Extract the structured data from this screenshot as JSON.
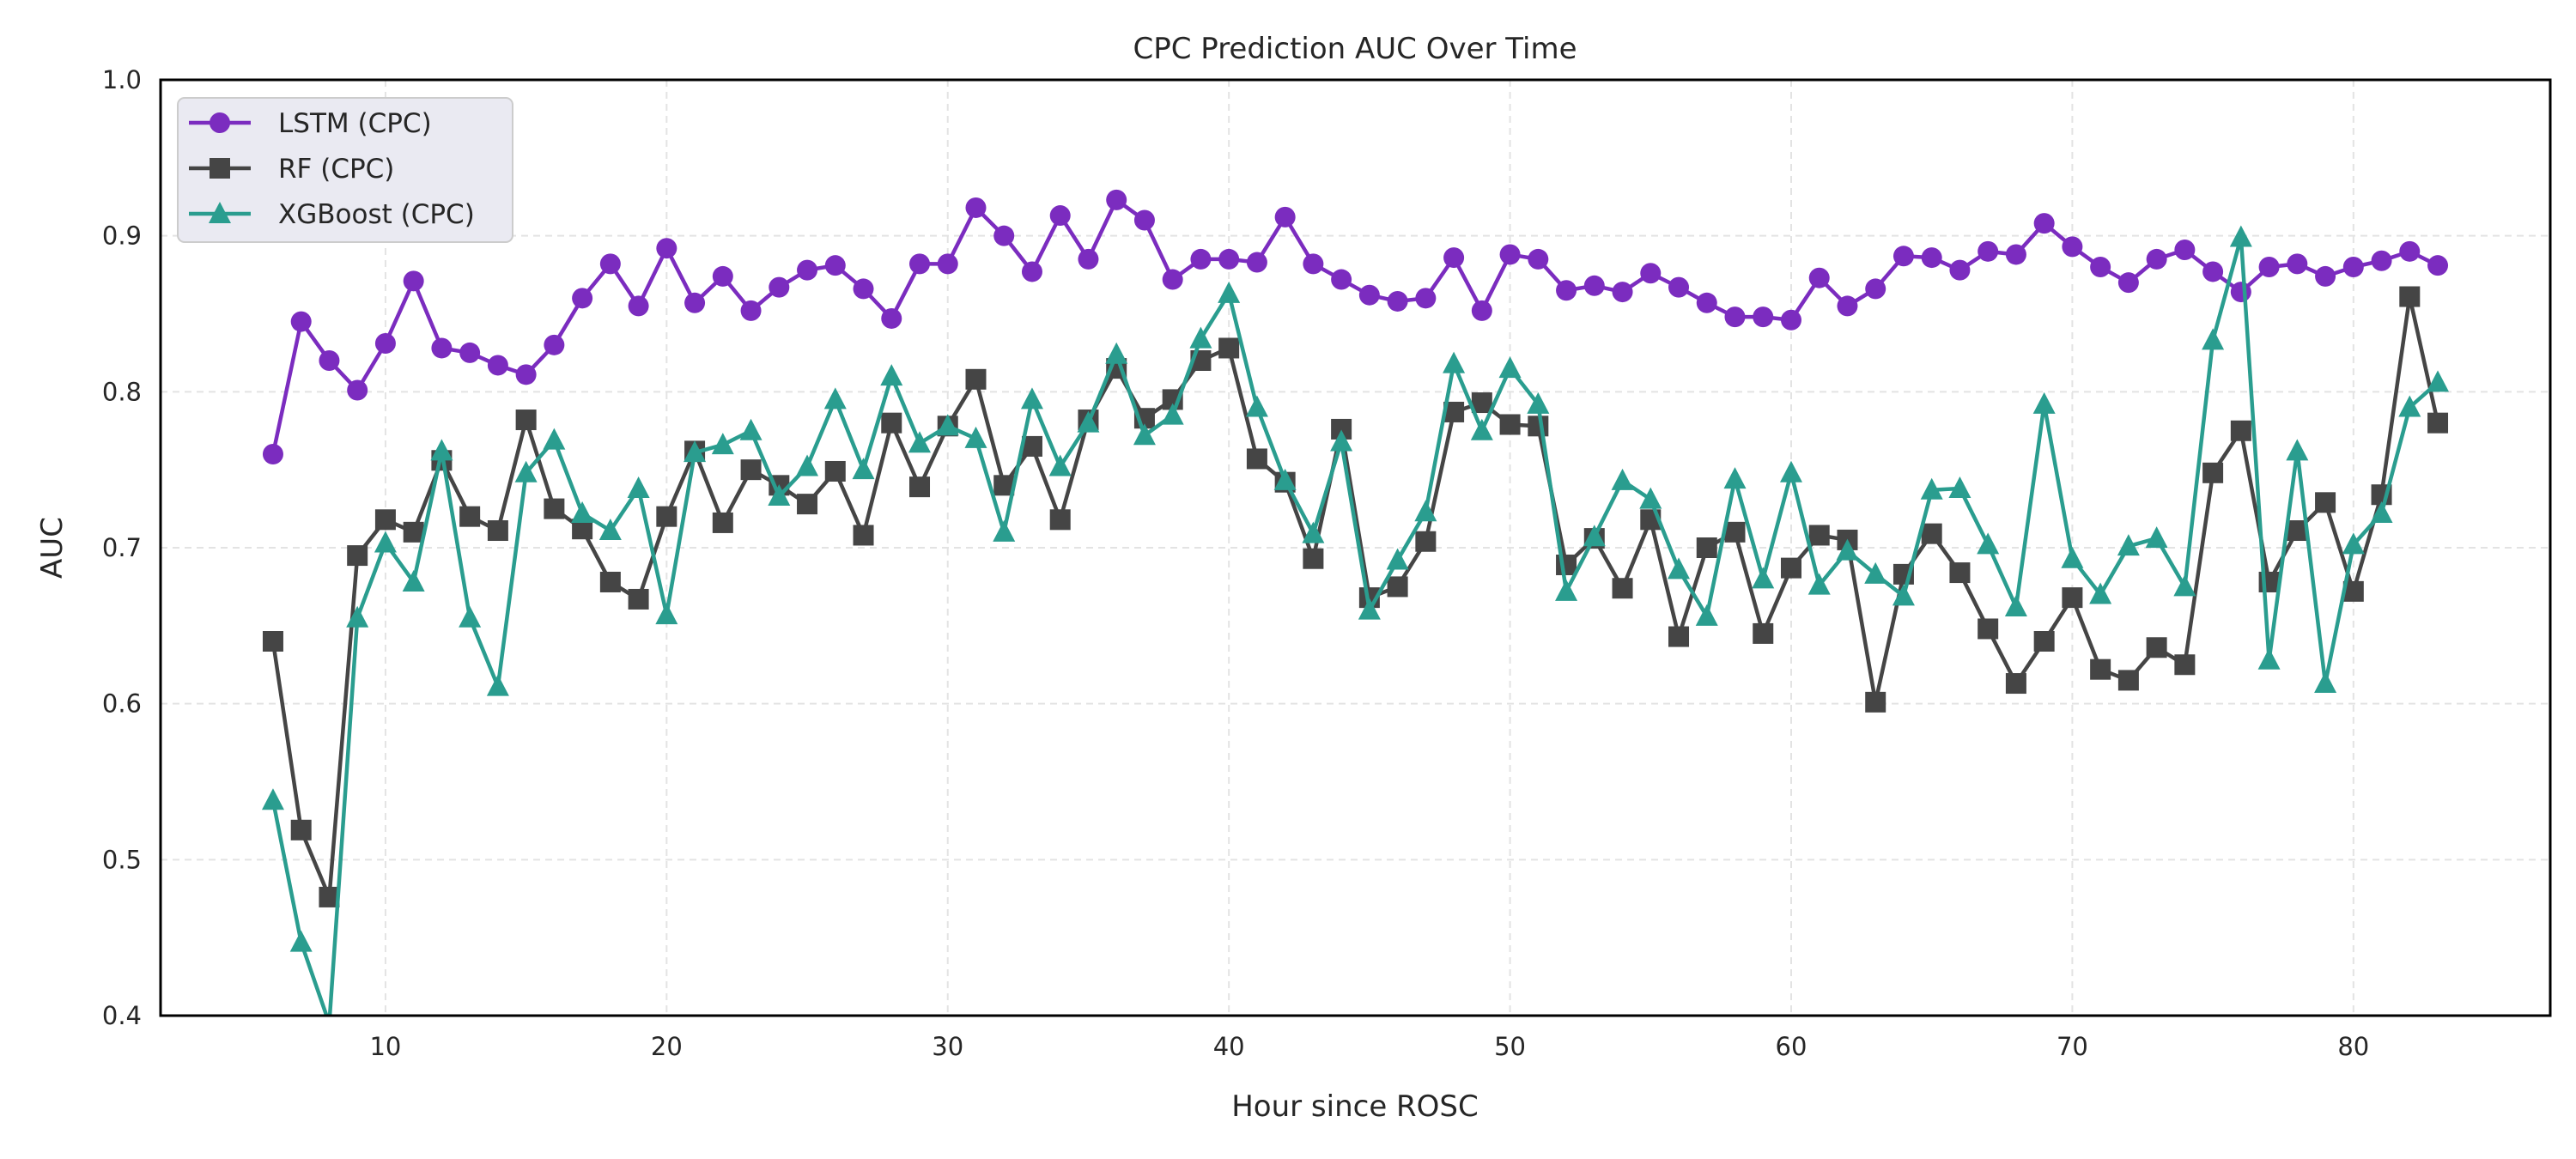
{
  "chart_data": {
    "type": "line",
    "title": "CPC Prediction AUC Over Time",
    "xlabel": "Hour since ROSC",
    "ylabel": "AUC",
    "xlim": [
      2,
      87
    ],
    "ylim": [
      0.4,
      1.0
    ],
    "xticks": [
      10,
      20,
      30,
      40,
      50,
      60,
      70,
      80
    ],
    "yticks": [
      0.4,
      0.5,
      0.6,
      0.7,
      0.8,
      0.9,
      1.0
    ],
    "grid": true,
    "legend_position": "top-left",
    "x": [
      6,
      7,
      8,
      9,
      10,
      11,
      12,
      13,
      14,
      15,
      16,
      17,
      18,
      19,
      20,
      21,
      22,
      23,
      24,
      25,
      26,
      27,
      28,
      29,
      30,
      31,
      32,
      33,
      34,
      35,
      36,
      37,
      38,
      39,
      40,
      41,
      42,
      43,
      44,
      45,
      46,
      47,
      48,
      49,
      50,
      51,
      52,
      53,
      54,
      55,
      56,
      57,
      58,
      59,
      60,
      61,
      62,
      63,
      64,
      65,
      66,
      67,
      68,
      69,
      70,
      71,
      72,
      73,
      74,
      75,
      76,
      77,
      78,
      79,
      80,
      81,
      82,
      83
    ],
    "series": [
      {
        "name": "LSTM (CPC)",
        "color": "#7b2cbf",
        "marker": "circle",
        "values": [
          0.76,
          0.845,
          0.82,
          0.801,
          0.831,
          0.871,
          0.828,
          0.825,
          0.817,
          0.811,
          0.83,
          0.86,
          0.882,
          0.855,
          0.892,
          0.857,
          0.874,
          0.852,
          0.867,
          0.878,
          0.881,
          0.866,
          0.847,
          0.882,
          0.882,
          0.918,
          0.9,
          0.877,
          0.913,
          0.885,
          0.923,
          0.91,
          0.872,
          0.885,
          0.885,
          0.883,
          0.912,
          0.882,
          0.872,
          0.862,
          0.858,
          0.86,
          0.886,
          0.852,
          0.888,
          0.885,
          0.865,
          0.868,
          0.864,
          0.876,
          0.867,
          0.857,
          0.848,
          0.848,
          0.846,
          0.873,
          0.855,
          0.866,
          0.887,
          0.886,
          0.878,
          0.89,
          0.888,
          0.908,
          0.893,
          0.88,
          0.87,
          0.885,
          0.891,
          0.877,
          0.864,
          0.88,
          0.882,
          0.874,
          0.88,
          0.884,
          0.89,
          0.881
        ]
      },
      {
        "name": "RF (CPC)",
        "color": "#454545",
        "marker": "square",
        "values": [
          0.64,
          0.519,
          0.476,
          0.695,
          0.718,
          0.71,
          0.756,
          0.72,
          0.711,
          0.782,
          0.725,
          0.712,
          0.678,
          0.667,
          0.72,
          0.762,
          0.716,
          0.75,
          0.74,
          0.728,
          0.749,
          0.708,
          0.78,
          0.739,
          0.778,
          0.808,
          0.74,
          0.765,
          0.718,
          0.782,
          0.815,
          0.783,
          0.795,
          0.82,
          0.828,
          0.757,
          0.742,
          0.693,
          0.776,
          0.668,
          0.675,
          0.704,
          0.787,
          0.793,
          0.779,
          0.778,
          0.689,
          0.706,
          0.674,
          0.718,
          0.643,
          0.7,
          0.71,
          0.645,
          0.687,
          0.708,
          0.705,
          0.601,
          0.683,
          0.709,
          0.684,
          0.648,
          0.613,
          0.64,
          0.668,
          0.622,
          0.615,
          0.636,
          0.625,
          0.748,
          0.775,
          0.678,
          0.711,
          0.729,
          0.672,
          0.734,
          0.861,
          0.78
        ]
      },
      {
        "name": "XGBoost (CPC)",
        "color": "#2a9d8f",
        "marker": "triangle",
        "values": [
          0.538,
          0.447,
          0.395,
          0.655,
          0.703,
          0.678,
          0.762,
          0.655,
          0.611,
          0.748,
          0.769,
          0.722,
          0.711,
          0.738,
          0.657,
          0.761,
          0.766,
          0.775,
          0.733,
          0.752,
          0.795,
          0.75,
          0.81,
          0.767,
          0.778,
          0.77,
          0.71,
          0.795,
          0.752,
          0.78,
          0.824,
          0.772,
          0.785,
          0.834,
          0.863,
          0.79,
          0.743,
          0.709,
          0.768,
          0.66,
          0.692,
          0.723,
          0.818,
          0.775,
          0.815,
          0.792,
          0.672,
          0.707,
          0.743,
          0.731,
          0.686,
          0.656,
          0.744,
          0.68,
          0.748,
          0.676,
          0.698,
          0.683,
          0.669,
          0.737,
          0.738,
          0.702,
          0.662,
          0.792,
          0.693,
          0.67,
          0.701,
          0.706,
          0.675,
          0.833,
          0.899,
          0.628,
          0.762,
          0.613,
          0.702,
          0.722,
          0.79,
          0.806
        ]
      }
    ]
  }
}
